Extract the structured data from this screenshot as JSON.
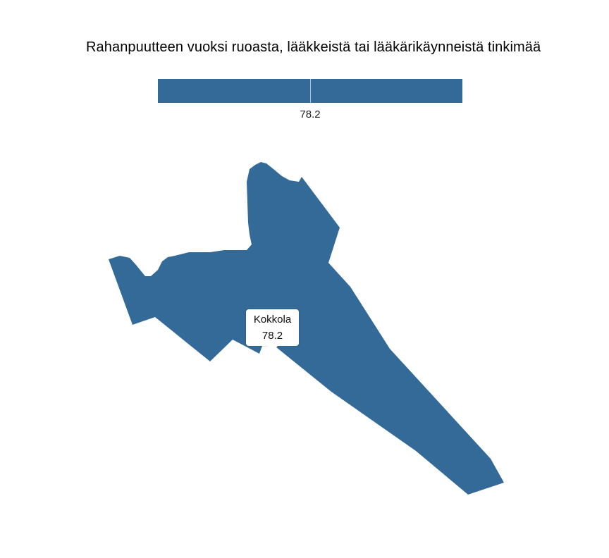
{
  "title": "Rahanpuutteen vuoksi ruoasta, lääkkeistä tai lääkärikäynneistä tinkimää",
  "legend": {
    "value_label": "78.2",
    "color": "#336a98"
  },
  "map": {
    "fill_color": "#336a98",
    "region": {
      "name": "Kokkola",
      "value": 78.2
    }
  },
  "tooltip": {
    "name": "Kokkola",
    "value": "78.2"
  }
}
